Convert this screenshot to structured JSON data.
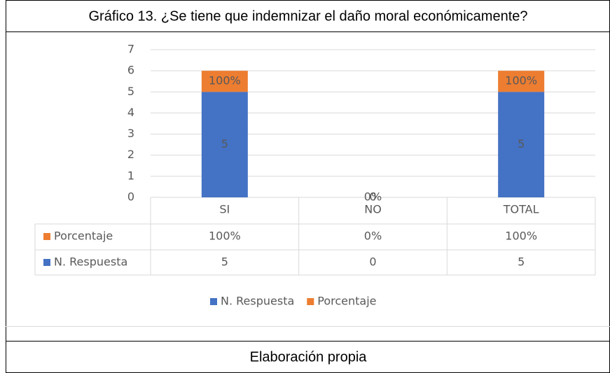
{
  "chart_data": {
    "type": "bar",
    "stacked": true,
    "title": "Gráfico 13. ¿Se tiene que indemnizar el daño moral económicamente?",
    "categories": [
      "SI",
      "NO",
      "TOTAL"
    ],
    "series": [
      {
        "name": "N. Respuesta",
        "color": "#4472c4",
        "values": [
          5,
          0,
          5
        ]
      },
      {
        "name": "Porcentaje",
        "color": "#ed7d31",
        "values": [
          1,
          0,
          1
        ],
        "value_labels": [
          "100%",
          "0%",
          "100%"
        ]
      }
    ],
    "ylim": [
      0,
      7
    ],
    "yticks": [
      0,
      1,
      2,
      3,
      4,
      5,
      6,
      7
    ],
    "grid": true,
    "legend": "bottom",
    "source": "Elaboración propia"
  }
}
